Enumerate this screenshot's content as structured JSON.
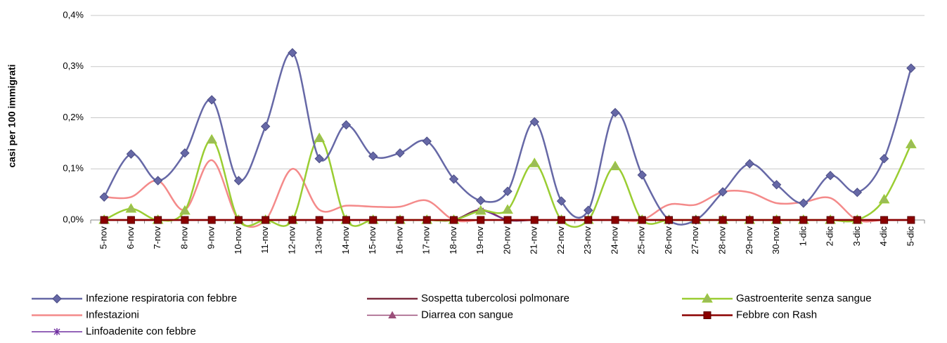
{
  "chart_data": {
    "type": "line",
    "y_label": "casi per 100 immigrati",
    "categories": [
      "5-nov",
      "6-nov",
      "7-nov",
      "8-nov",
      "9-nov",
      "10-nov",
      "11-nov",
      "12-nov",
      "13-nov",
      "14-nov",
      "15-nov",
      "16-nov",
      "17-nov",
      "18-nov",
      "19-nov",
      "20-nov",
      "21-nov",
      "22-nov",
      "23-nov",
      "24-nov",
      "25-nov",
      "26-nov",
      "27-nov",
      "28-nov",
      "29-nov",
      "30-nov",
      "1-dic",
      "2-dic",
      "3-dic",
      "4-dic",
      "5-dic"
    ],
    "ylim": [
      0,
      0.4
    ],
    "yticks": [
      {
        "value": 0,
        "label": "0,0%"
      },
      {
        "value": 0.1,
        "label": "0,1%"
      },
      {
        "value": 0.2,
        "label": "0,2%"
      },
      {
        "value": 0.3,
        "label": "0,3%"
      },
      {
        "value": 0.4,
        "label": "0,4%"
      }
    ],
    "grid": true,
    "legend": "bottom",
    "series": [
      {
        "name": "Infezione respiratoria con febbre",
        "color": "#6668a6",
        "marker": "diamond",
        "values": [
          0.045,
          0.129,
          0.077,
          0.131,
          0.235,
          0.077,
          0.183,
          0.327,
          0.12,
          0.186,
          0.125,
          0.131,
          0.154,
          0.08,
          0.038,
          0.056,
          0.192,
          0.037,
          0.019,
          0.21,
          0.088,
          0,
          0,
          0.055,
          0.11,
          0.069,
          0.033,
          0.087,
          0.054,
          0.12,
          0.297
        ]
      },
      {
        "name": "Sospetta tubercolosi polmonare",
        "color": "#7b2c3f",
        "marker": "none",
        "values": [
          0,
          0,
          0,
          0,
          0,
          0,
          0,
          0,
          0,
          0,
          0,
          0,
          0,
          0,
          0.02,
          0,
          0,
          0,
          0,
          0,
          0,
          0,
          0,
          0,
          0,
          0,
          0,
          0,
          0,
          0,
          0
        ]
      },
      {
        "name": "Gastroenterite senza sangue",
        "color": "#9acd32",
        "marker": "triangle",
        "values": [
          0,
          0.022,
          0,
          0.018,
          0.157,
          0,
          0,
          0,
          0.16,
          0,
          0,
          0,
          0,
          0,
          0.018,
          0.02,
          0.111,
          0,
          0,
          0.105,
          0,
          0,
          0,
          0,
          0,
          0,
          0,
          0,
          0,
          0.04,
          0.148
        ]
      },
      {
        "name": "Infestazioni",
        "color": "#f48a8a",
        "marker": "none",
        "values": [
          0.045,
          0.045,
          0.077,
          0.02,
          0.117,
          0,
          0,
          0.1,
          0.02,
          0.028,
          0.026,
          0.026,
          0.038,
          0,
          0,
          0,
          0,
          0,
          0,
          0,
          0,
          0.03,
          0.03,
          0.055,
          0.054,
          0.033,
          0.035,
          0.043,
          0,
          0,
          0
        ]
      },
      {
        "name": "Diarrea con sangue",
        "color": "#9b4f7a",
        "marker": "smalltriangle",
        "values": [
          0,
          0,
          0,
          0,
          0,
          0,
          0,
          0,
          0,
          0,
          0,
          0,
          0,
          0,
          0.018,
          0,
          0,
          0,
          0,
          0,
          0,
          0,
          0,
          0,
          0,
          0,
          0,
          0,
          0,
          0,
          0
        ]
      },
      {
        "name": "Febbre con Rash",
        "color": "#8b0000",
        "marker": "square",
        "values": [
          0,
          0,
          0,
          0,
          0,
          0,
          0,
          0,
          0,
          0,
          0,
          0,
          0,
          0,
          0,
          0,
          0,
          0,
          0,
          0,
          0,
          0,
          0,
          0,
          0,
          0,
          0,
          0,
          0,
          0,
          0
        ]
      },
      {
        "name": "Linfoadenite con febbre",
        "color": "#7030a0",
        "marker": "star",
        "values": [
          0,
          0,
          0,
          0,
          0,
          0,
          0,
          0,
          0,
          0,
          0,
          0,
          0,
          0,
          0.018,
          0,
          0,
          0,
          0,
          0,
          0,
          0,
          0,
          0,
          0,
          0,
          0,
          0,
          0,
          0,
          0
        ]
      }
    ]
  }
}
